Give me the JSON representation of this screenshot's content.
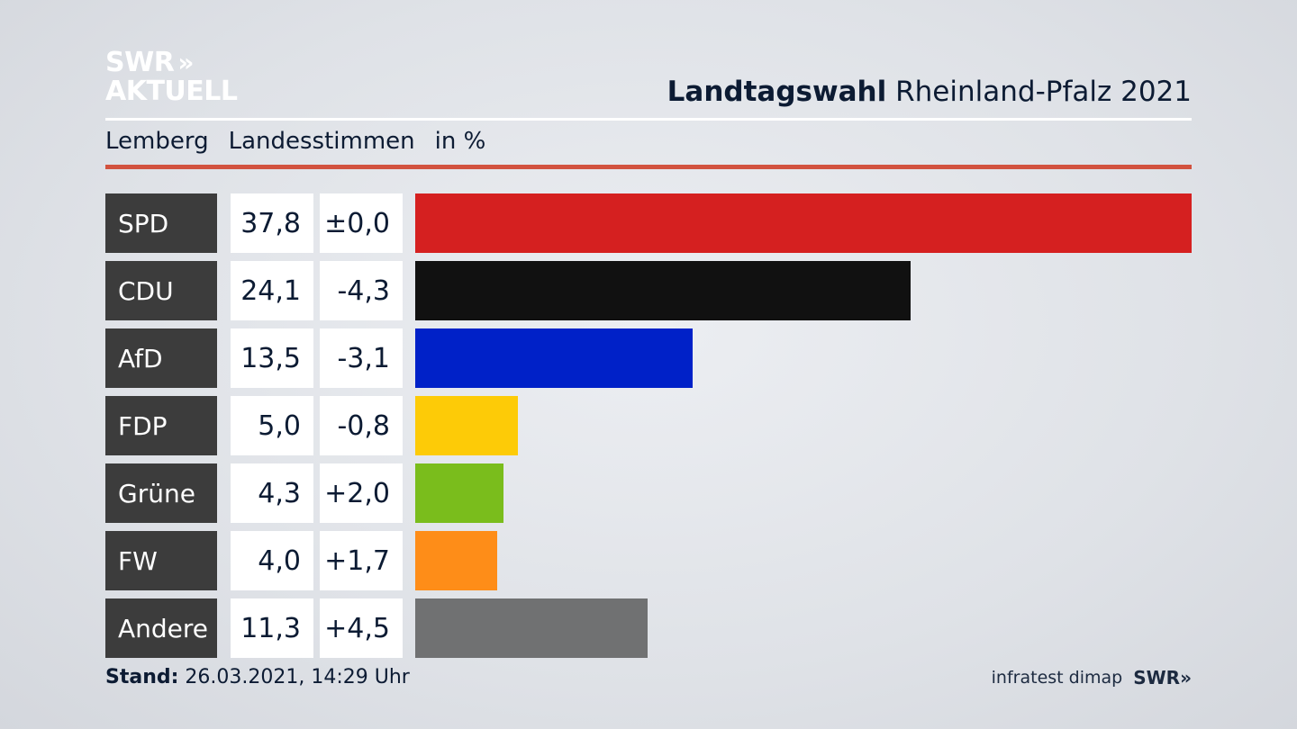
{
  "logo": {
    "line1": "SWR",
    "line1_chevrons": "»",
    "line2": "AKTUELL"
  },
  "header": {
    "title_bold": "Landtagswahl",
    "title_rest": "Rheinland-Pfalz 2021"
  },
  "subheader": {
    "place": "Lemberg",
    "metric": "Landesstimmen",
    "unit": "in %"
  },
  "chart_data": {
    "type": "bar",
    "orientation": "horizontal",
    "categories": [
      "SPD",
      "CDU",
      "AfD",
      "FDP",
      "Grüne",
      "FW",
      "Andere"
    ],
    "values": [
      37.8,
      24.1,
      13.5,
      5.0,
      4.3,
      4.0,
      11.3
    ],
    "value_labels": [
      "37,8",
      "24,1",
      "13,5",
      "5,0",
      "4,3",
      "4,0",
      "11,3"
    ],
    "diff_labels": [
      "±0,0",
      "-4,3",
      "-3,1",
      "-0,8",
      "+2,0",
      "+1,7",
      "+4,5"
    ],
    "colors": [
      "#d52020",
      "#111111",
      "#0021c8",
      "#fdcb07",
      "#7abd1c",
      "#fe8d18",
      "#707172"
    ],
    "xlim": [
      0,
      37.8
    ]
  },
  "footer": {
    "stand_label": "Stand:",
    "stand_value": "26.03.2021, 14:29 Uhr",
    "source": "infratest dimap",
    "brand": "SWR",
    "brand_chevrons": "»"
  }
}
